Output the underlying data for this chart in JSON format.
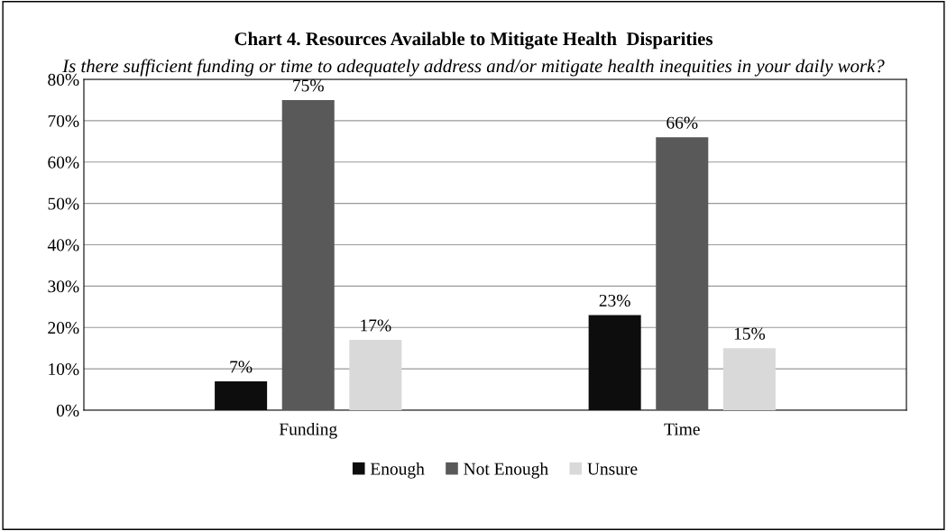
{
  "chart_data": {
    "type": "bar",
    "title": "Chart 4. Resources Available to Mitigate Health  Disparities",
    "subtitle": "Is there sufficient funding or time to adequately address and/or mitigate health inequities in your daily work?",
    "categories": [
      "Funding",
      "Time"
    ],
    "series": [
      {
        "name": "Enough",
        "color": "#0d0d0d",
        "values": [
          7,
          23
        ],
        "value_labels": [
          "7%",
          "23%"
        ]
      },
      {
        "name": "Not Enough",
        "color": "#595959",
        "values": [
          75,
          66
        ],
        "value_labels": [
          "75%",
          "66%"
        ]
      },
      {
        "name": "Unsure",
        "color": "#d9d9d9",
        "values": [
          17,
          15
        ],
        "value_labels": [
          "17%",
          "15%"
        ]
      }
    ],
    "ylim": [
      0,
      80
    ],
    "yticks": [
      {
        "value": 0,
        "label": "0%"
      },
      {
        "value": 10,
        "label": "10%"
      },
      {
        "value": 20,
        "label": "20%"
      },
      {
        "value": 30,
        "label": "30%"
      },
      {
        "value": 40,
        "label": "40%"
      },
      {
        "value": 50,
        "label": "50%"
      },
      {
        "value": 60,
        "label": "60%"
      },
      {
        "value": 70,
        "label": "70%"
      },
      {
        "value": 80,
        "label": "80%"
      }
    ],
    "grid": "y",
    "legend": "bottom"
  }
}
